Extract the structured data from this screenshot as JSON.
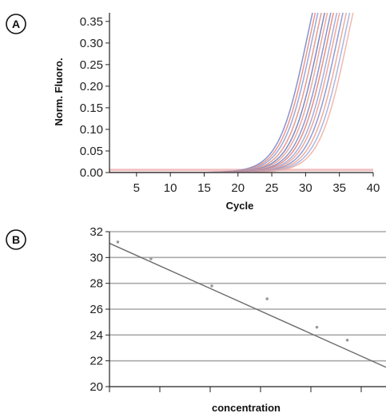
{
  "chart_data": [
    {
      "panel_label": "A",
      "type": "line",
      "xlabel": "Cycle",
      "ylabel": "Norm. Fluoro.",
      "xlim": [
        1,
        40
      ],
      "ylim": [
        0,
        0.37
      ],
      "x_ticks": [
        5,
        10,
        15,
        20,
        25,
        30,
        35,
        40
      ],
      "x_tick_labels": [
        "5",
        "10",
        "15",
        "20",
        "25",
        "30",
        "35",
        "40"
      ],
      "y_ticks": [
        0.0,
        0.05,
        0.1,
        0.15,
        0.2,
        0.25,
        0.3,
        0.35
      ],
      "y_tick_labels": [
        "0.00",
        "0.05",
        "0.10",
        "0.15",
        "0.20",
        "0.25",
        "0.30",
        "0.35"
      ],
      "grid": false,
      "series_shape": "sigmoid amplification curves, plateau clipped at top of plot",
      "series": [
        {
          "midpoint_cycle": 30.2,
          "color": "#7a86c8"
        },
        {
          "midpoint_cycle": 30.6,
          "color": "#e88c80"
        },
        {
          "midpoint_cycle": 31.0,
          "color": "#8fa0d8"
        },
        {
          "midpoint_cycle": 31.5,
          "color": "#e3907e"
        },
        {
          "midpoint_cycle": 32.0,
          "color": "#6f7dc2"
        },
        {
          "midpoint_cycle": 32.4,
          "color": "#eaa090"
        },
        {
          "midpoint_cycle": 32.9,
          "color": "#7e8ccc"
        },
        {
          "midpoint_cycle": 33.3,
          "color": "#e58472"
        },
        {
          "midpoint_cycle": 33.8,
          "color": "#98a6dc"
        },
        {
          "midpoint_cycle": 34.2,
          "color": "#ee9c8c"
        },
        {
          "midpoint_cycle": 34.7,
          "color": "#8390cf"
        },
        {
          "midpoint_cycle": 35.2,
          "color": "#e9a494"
        },
        {
          "midpoint_cycle": 35.7,
          "color": "#a4aedf"
        },
        {
          "midpoint_cycle": 36.2,
          "color": "#f0b0a2"
        }
      ],
      "baseline_color": "#f2c0c0"
    },
    {
      "panel_label": "B",
      "type": "line",
      "xlabel": "concentration",
      "ylabel": "",
      "ylim": [
        20,
        32
      ],
      "y_ticks": [
        20,
        22,
        24,
        26,
        28,
        30,
        32
      ],
      "y_tick_labels": [
        "20",
        "22",
        "24",
        "26",
        "28",
        "30",
        "32"
      ],
      "x_tick_count": 6,
      "grid": true,
      "line": {
        "start": 31.1,
        "end": 21.5,
        "color": "#6b6b6b"
      },
      "markers": [
        {
          "x": 0.03,
          "y": 31.2
        },
        {
          "x": 0.15,
          "y": 29.9
        },
        {
          "x": 0.37,
          "y": 27.8
        },
        {
          "x": 0.57,
          "y": 26.8
        },
        {
          "x": 0.75,
          "y": 24.6
        },
        {
          "x": 0.86,
          "y": 23.6
        }
      ],
      "grid_color": "#a9a9a9"
    }
  ]
}
